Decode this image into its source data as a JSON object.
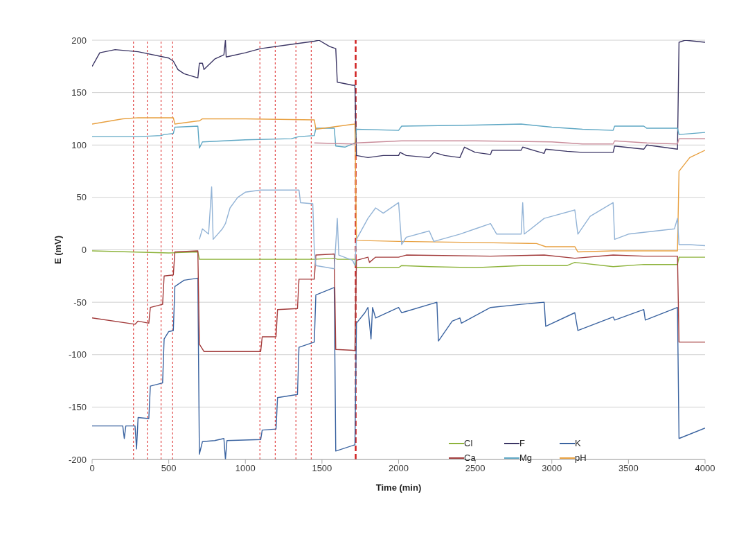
{
  "chart_data": {
    "type": "line",
    "xlabel": "Time (min)",
    "ylabel": "E (mV)",
    "xlim": [
      0,
      4000
    ],
    "xticks": [
      0,
      500,
      1000,
      1500,
      2000,
      2500,
      3000,
      3500,
      4000
    ],
    "ylim": [
      -200,
      200
    ],
    "yticks": [
      -200,
      -150,
      -100,
      -50,
      0,
      50,
      100,
      150,
      200
    ],
    "grid": "y",
    "legend": "bottom right",
    "marker": "none",
    "line_style": "solid",
    "series": [
      {
        "name": "Cl",
        "color": "#8db33b",
        "x": [
          0,
          500,
          690,
          700,
          1000,
          1450,
          1580,
          1600,
          1715,
          1725,
          2000,
          2020,
          2200,
          2500,
          2800,
          3100,
          3150,
          3400,
          3600,
          3820,
          3830,
          4000
        ],
        "values": [
          -1,
          -3,
          -2,
          -9,
          -9,
          -9,
          -8,
          -9,
          -9,
          -17,
          -17,
          -15,
          -16,
          -17,
          -15,
          -15,
          -12,
          -16,
          -14,
          -14,
          -7,
          -7
        ]
      },
      {
        "name": "F",
        "color": "#3b3564",
        "x": [
          0,
          50,
          150,
          300,
          500,
          530,
          560,
          600,
          690,
          700,
          720,
          730,
          800,
          860,
          870,
          875,
          1000,
          1100,
          1300,
          1450,
          1480,
          1550,
          1590,
          1600,
          1700,
          1715,
          1725,
          1800,
          1900,
          2000,
          2010,
          2050,
          2200,
          2230,
          2300,
          2400,
          2430,
          2500,
          2600,
          2610,
          2800,
          2810,
          2950,
          2960,
          3100,
          3200,
          3400,
          3410,
          3600,
          3620,
          3820,
          3830,
          3870,
          4000
        ],
        "values": [
          175,
          188,
          191,
          189,
          183,
          180,
          172,
          168,
          164,
          178,
          178,
          172,
          182,
          186,
          200,
          184,
          188,
          192,
          196,
          199,
          200,
          194,
          192,
          160,
          157,
          157,
          90,
          88,
          90,
          90,
          93,
          90,
          88,
          93,
          90,
          88,
          98,
          93,
          91,
          95,
          95,
          98,
          92,
          96,
          94,
          93,
          93,
          99,
          96,
          100,
          96,
          198,
          200,
          198
        ]
      },
      {
        "name": "K",
        "color": "#3a63a0",
        "x": [
          0,
          200,
          210,
          220,
          280,
          290,
          300,
          370,
          380,
          460,
          470,
          500,
          530,
          540,
          600,
          690,
          700,
          720,
          800,
          860,
          870,
          880,
          1100,
          1110,
          1200,
          1210,
          1340,
          1350,
          1450,
          1460,
          1580,
          1590,
          1715,
          1725,
          1780,
          1800,
          1820,
          1830,
          1850,
          2000,
          2020,
          2250,
          2260,
          2350,
          2400,
          2410,
          2600,
          2800,
          2950,
          2960,
          3150,
          3170,
          3400,
          3410,
          3600,
          3610,
          3820,
          3830,
          4000
        ],
        "values": [
          -168,
          -168,
          -180,
          -168,
          -168,
          -190,
          -160,
          -161,
          -130,
          -127,
          -85,
          -78,
          -77,
          -35,
          -29,
          -27,
          -195,
          -183,
          -182,
          -180,
          -200,
          -182,
          -181,
          -172,
          -171,
          -141,
          -138,
          -93,
          -88,
          -43,
          -36,
          -192,
          -186,
          -70,
          -60,
          -55,
          -85,
          -55,
          -65,
          -55,
          -60,
          -50,
          -87,
          -68,
          -65,
          -70,
          -55,
          -52,
          -50,
          -73,
          -60,
          -77,
          -64,
          -67,
          -57,
          -67,
          -55,
          -180,
          -170
        ]
      },
      {
        "name": "Ca",
        "color": "#a23b3b",
        "x": [
          0,
          280,
          300,
          370,
          380,
          460,
          470,
          530,
          540,
          690,
          700,
          730,
          1000,
          1100,
          1110,
          1200,
          1210,
          1340,
          1350,
          1450,
          1460,
          1580,
          1590,
          1715,
          1725,
          1800,
          1810,
          1850,
          2000,
          2050,
          2600,
          2950,
          3150,
          3400,
          3600,
          3820,
          3830,
          4000
        ],
        "values": [
          -65,
          -71,
          -68,
          -70,
          -55,
          -52,
          -25,
          -24,
          -2,
          -1,
          -90,
          -97,
          -97,
          -97,
          -83,
          -83,
          -57,
          -56,
          -28,
          -28,
          -5,
          -4,
          -95,
          -96,
          -10,
          -7,
          -12,
          -7,
          -7,
          -5,
          -6,
          -5,
          -8,
          -5,
          -6,
          -6,
          -88,
          -88
        ]
      },
      {
        "name": "Mg",
        "color": "#5ea7c4",
        "x": [
          0,
          300,
          450,
          470,
          530,
          540,
          690,
          700,
          720,
          1000,
          1300,
          1350,
          1450,
          1460,
          1580,
          1590,
          1650,
          1715,
          1725,
          2000,
          2020,
          2500,
          2800,
          3000,
          3200,
          3400,
          3410,
          3600,
          3620,
          3820,
          3830,
          4000
        ],
        "values": [
          108,
          108,
          109,
          110,
          111,
          117,
          118,
          97,
          103,
          105,
          106,
          108,
          109,
          116,
          116,
          99,
          98,
          102,
          115,
          114,
          118,
          119,
          120,
          117,
          115,
          114,
          118,
          118,
          116,
          116,
          110,
          112
        ]
      },
      {
        "name": "pH",
        "color": "#e8a040",
        "x": [
          0,
          200,
          300,
          530,
          540,
          690,
          700,
          720,
          1000,
          1450,
          1460,
          1715,
          1725,
          2000,
          2500,
          2900,
          2960,
          3150,
          3170,
          3400,
          3820,
          3830,
          3900,
          4000
        ],
        "values": [
          120,
          125,
          126,
          126,
          120,
          123,
          123,
          125,
          125,
          124,
          115,
          120,
          9,
          8,
          7,
          6,
          3,
          3,
          -2,
          -1,
          -1,
          75,
          88,
          95
        ]
      },
      {
        "color": "#92b3d6",
        "x": [
          700,
          720,
          760,
          780,
          790,
          850,
          870,
          900,
          950,
          1000,
          1100,
          1200,
          1350,
          1360,
          1440,
          1450,
          1460,
          1580,
          1590,
          1600,
          1610,
          1700,
          1715,
          1725,
          1800,
          1850,
          1900,
          2000,
          2020,
          2050,
          2200,
          2230,
          2400,
          2500,
          2600,
          2640,
          2800,
          2810,
          2820,
          2950,
          3000,
          3150,
          3170,
          3250,
          3400,
          3410,
          3500,
          3800,
          3820,
          3830,
          3900,
          4000
        ],
        "values": [
          10,
          20,
          15,
          60,
          10,
          20,
          25,
          40,
          50,
          55,
          57,
          57,
          57,
          45,
          44,
          0,
          -15,
          -18,
          5,
          30,
          -5,
          -10,
          -15,
          10,
          30,
          40,
          35,
          45,
          5,
          12,
          18,
          8,
          15,
          20,
          25,
          15,
          15,
          45,
          15,
          30,
          32,
          38,
          15,
          32,
          45,
          10,
          15,
          20,
          30,
          5,
          5,
          4
        ]
      },
      {
        "color": "#c98c9a",
        "x": [
          1450,
          1715,
          1725,
          2020,
          2500,
          3000,
          3200,
          3400,
          3410,
          3620,
          3820,
          3830,
          4000
        ],
        "values": [
          102,
          101,
          102,
          104,
          104,
          103,
          101,
          101,
          104,
          102,
          101,
          106,
          106
        ]
      }
    ],
    "ref_lines": [
      {
        "axis": "x",
        "value": 270,
        "color": "#e04040",
        "line_style": "dotted"
      },
      {
        "axis": "x",
        "value": 360,
        "color": "#e04040",
        "line_style": "dotted"
      },
      {
        "axis": "x",
        "value": 450,
        "color": "#e04040",
        "line_style": "dotted"
      },
      {
        "axis": "x",
        "value": 525,
        "color": "#e04040",
        "line_style": "dotted"
      },
      {
        "axis": "x",
        "value": 1095,
        "color": "#e04040",
        "line_style": "dotted"
      },
      {
        "axis": "x",
        "value": 1195,
        "color": "#e04040",
        "line_style": "dotted"
      },
      {
        "axis": "x",
        "value": 1330,
        "color": "#e04040",
        "line_style": "dotted"
      },
      {
        "axis": "x",
        "value": 1430,
        "color": "#e04040",
        "line_style": "dotted"
      },
      {
        "axis": "x",
        "value": 1720,
        "color": "#d02020",
        "line_style": "dashed"
      }
    ]
  }
}
